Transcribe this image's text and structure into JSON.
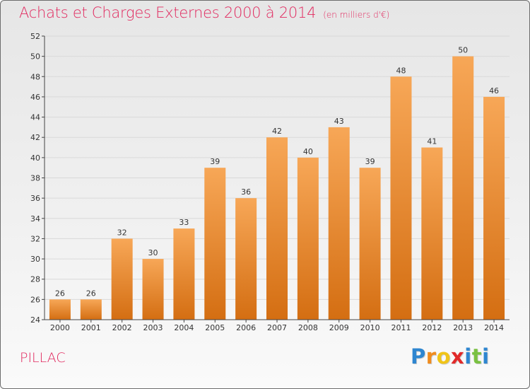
{
  "title": {
    "main": "Achats et Charges Externes 2000 à 2014",
    "unit": "(en milliers d'€)"
  },
  "commune": "PILLAC",
  "logo": {
    "letters": [
      "P",
      "r",
      "o",
      "x",
      "i",
      "t",
      "i"
    ],
    "colors": [
      "#2e86d0",
      "#f08c1e",
      "#f0c419",
      "#e12a2a",
      "#2e86d0",
      "#7ac142",
      "#2e86d0"
    ]
  },
  "colors": {
    "bar_light": "#f7a757",
    "bar_dark": "#d46e12",
    "title": "#e1295f",
    "grid": "#d9d9d9",
    "axis": "#444444"
  },
  "chart_data": {
    "type": "bar",
    "title": "Achats et Charges Externes 2000 à 2014",
    "subtitle": "(en milliers d'€)",
    "xlabel": "",
    "ylabel": "",
    "categories": [
      "2000",
      "2001",
      "2002",
      "2003",
      "2004",
      "2005",
      "2006",
      "2007",
      "2008",
      "2009",
      "2010",
      "2011",
      "2012",
      "2013",
      "2014"
    ],
    "values": [
      26,
      26,
      32,
      30,
      33,
      39,
      36,
      42,
      40,
      43,
      39,
      48,
      41,
      50,
      46
    ],
    "value_labels": [
      "26",
      "26",
      "32",
      "30",
      "33",
      "39",
      "36",
      "42",
      "40",
      "43",
      "39",
      "48",
      "41",
      "50",
      "46"
    ],
    "ylim": [
      24,
      52
    ],
    "yticks": [
      24,
      26,
      28,
      30,
      32,
      34,
      36,
      38,
      40,
      42,
      44,
      46,
      48,
      50,
      52
    ],
    "ytick_labels": [
      "24",
      "26",
      "28",
      "30",
      "32",
      "34",
      "36",
      "38",
      "40",
      "42",
      "44",
      "46",
      "48",
      "50",
      "52"
    ],
    "grid": true,
    "legend": "none"
  }
}
